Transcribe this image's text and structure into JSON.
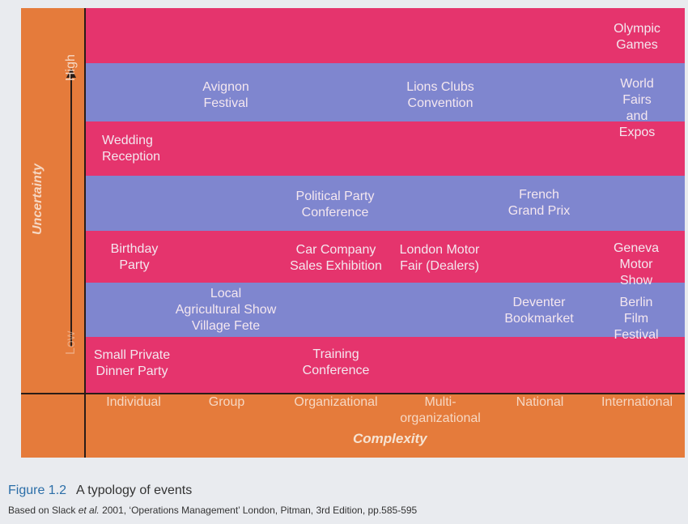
{
  "figure": {
    "y_axis": {
      "title": "Uncertainty",
      "high": "High",
      "low": "Low"
    },
    "x_axis": {
      "title": "Complexity",
      "ticks": [
        "Individual",
        "Group",
        "Organizational",
        "Multi-\norganizational",
        "National",
        "International"
      ]
    },
    "events": [
      {
        "label": "Olympic\nGames"
      },
      {
        "label": "Avignon\nFestival"
      },
      {
        "label": "Lions Clubs\nConvention"
      },
      {
        "label": "World Fairs\nand Expos"
      },
      {
        "label": "Wedding\nReception"
      },
      {
        "label": "Political Party\nConference"
      },
      {
        "label": "French\nGrand Prix"
      },
      {
        "label": "Birthday\nParty"
      },
      {
        "label": "Car Company\nSales Exhibition"
      },
      {
        "label": "London Motor\nFair (Dealers)"
      },
      {
        "label": "Geneva\nMotor Show"
      },
      {
        "label": "Local\nAgricultural Show\nVillage Fete"
      },
      {
        "label": "Deventer\nBookmarket"
      },
      {
        "label": "Berlin\nFilm Festival"
      },
      {
        "label": "Small Private\nDinner Party"
      },
      {
        "label": "Training\nConference"
      }
    ],
    "colors": {
      "pink_band": "#e5346d",
      "blue_band": "#7f86cf",
      "frame": "#e57b3b"
    }
  },
  "caption": {
    "number": "Figure 1.2",
    "title": "A typology of events",
    "source_prefix": "Based on Slack ",
    "source_etal": "et al.",
    "source_rest": " 2001, ‘Operations Management’ London, Pitman, 3rd Edition, pp.585-595"
  }
}
